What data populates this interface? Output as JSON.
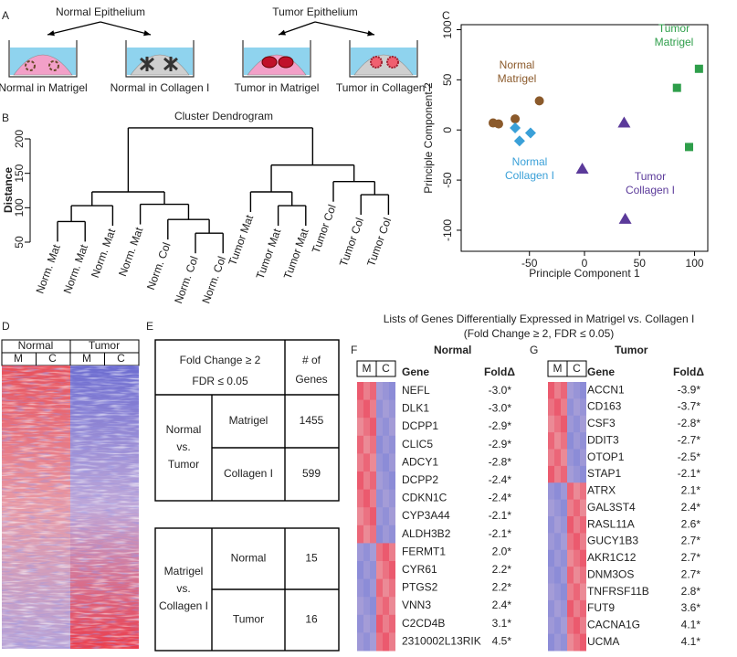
{
  "panel_labels": {
    "a": "A",
    "b": "B",
    "c": "C",
    "d": "D",
    "e": "E",
    "f": "F",
    "g": "G"
  },
  "panel_a": {
    "normal_title": "Normal Epithelium",
    "tumor_title": "Tumor Epithelium",
    "captions": [
      {
        "text": "Normal in Matrigel",
        "color": "#8b5a2b"
      },
      {
        "text": "Normal in Collagen I",
        "color": "#3aa0d8"
      },
      {
        "text": "Tumor in Matrigel",
        "color": "#2e9e4a"
      },
      {
        "text": "Tumor in Collagen I",
        "color": "#5b3a9a"
      }
    ]
  },
  "dendrogram": {
    "title": "Cluster Dendrogram",
    "y_label": "Distance",
    "ylim": [
      50,
      200
    ],
    "yticks": [
      50,
      100,
      150,
      200
    ],
    "leaves": [
      {
        "label": "Norm. Mat",
        "color": "#8b5a2b"
      },
      {
        "label": "Norm. Mat",
        "color": "#8b5a2b"
      },
      {
        "label": "Norm. Mat",
        "color": "#8b5a2b"
      },
      {
        "label": "Norm. Mat",
        "color": "#8b5a2b"
      },
      {
        "label": "Norm. Col",
        "color": "#3aa0d8"
      },
      {
        "label": "Norm. Col",
        "color": "#3aa0d8"
      },
      {
        "label": "Norm. Col",
        "color": "#3aa0d8"
      },
      {
        "label": "Tumor Mat",
        "color": "#2e9e4a"
      },
      {
        "label": "Tumor Mat",
        "color": "#2e9e4a"
      },
      {
        "label": "Tumor Mat",
        "color": "#2e9e4a"
      },
      {
        "label": "Tumor Col",
        "color": "#5b3a9a"
      },
      {
        "label": "Tumor Col",
        "color": "#5b3a9a"
      },
      {
        "label": "Tumor Col",
        "color": "#5b3a9a"
      }
    ],
    "merges": [
      {
        "nodes": [
          0,
          1
        ],
        "height": 80
      },
      {
        "nodes": [
          13,
          2
        ],
        "height": 103
      },
      {
        "nodes": [
          5,
          6
        ],
        "height": 63
      },
      {
        "nodes": [
          4,
          15
        ],
        "height": 83
      },
      {
        "nodes": [
          3,
          16
        ],
        "height": 105
      },
      {
        "nodes": [
          14,
          17
        ],
        "height": 123
      },
      {
        "nodes": [
          8,
          9
        ],
        "height": 103
      },
      {
        "nodes": [
          7,
          19
        ],
        "height": 123
      },
      {
        "nodes": [
          11,
          12
        ],
        "height": 119
      },
      {
        "nodes": [
          10,
          21
        ],
        "height": 138
      },
      {
        "nodes": [
          20,
          22
        ],
        "height": 162
      },
      {
        "nodes": [
          18,
          23
        ],
        "height": 216
      }
    ]
  },
  "chart_data": {
    "type": "scatter",
    "x_label": "Principle Component 1",
    "y_label": "Principle Component 2",
    "xlim": [
      -112,
      112
    ],
    "ylim": [
      -121,
      105
    ],
    "xticks": [
      -50,
      0,
      50,
      100
    ],
    "yticks": [
      -100,
      -50,
      0,
      50,
      100
    ],
    "series": [
      {
        "name": "Normal Matrigel",
        "color": "#8b5a2b",
        "marker": "circle",
        "x": [
          -83,
          -78,
          -63,
          -41
        ],
        "y": [
          7,
          6,
          11,
          29
        ]
      },
      {
        "name": "Normal Collagen I",
        "color": "#3aa0d8",
        "marker": "diamond",
        "x": [
          -63,
          -59,
          -49
        ],
        "y": [
          2,
          -11,
          -3
        ]
      },
      {
        "name": "Tumor Matrigel",
        "color": "#2e9e4a",
        "marker": "square",
        "x": [
          104,
          84,
          95
        ],
        "y": [
          61,
          42,
          -17
        ]
      },
      {
        "name": "Tumor Collagen I",
        "color": "#5b3a9a",
        "marker": "triangle",
        "x": [
          36,
          -2,
          37
        ],
        "y": [
          7,
          -39,
          -89
        ]
      }
    ]
  },
  "heatmap": {
    "groups": [
      "Normal",
      "Tumor"
    ],
    "columns": [
      "M",
      "C",
      "M",
      "C"
    ]
  },
  "table": {
    "criteria": [
      "Fold Change ≥ 2",
      "FDR ≤ 0.05"
    ],
    "count_header": [
      "# of",
      "Genes"
    ],
    "groups": [
      {
        "label": [
          "Normal",
          "vs.",
          "Tumor"
        ],
        "rows": [
          [
            "Matrigel",
            1455
          ],
          [
            "Collagen I",
            599
          ]
        ]
      },
      {
        "label": [
          "Matrigel",
          "vs.",
          "Collagen I"
        ],
        "rows": [
          [
            "Normal",
            15
          ],
          [
            "Tumor",
            16
          ]
        ]
      }
    ]
  },
  "gene_lists": {
    "title": "Lists of Genes Differentially Expressed in Matrigel vs. Collagen I",
    "subtitle": "(Fold Change ≥ 2, FDR ≤ 0.05)",
    "lists": [
      {
        "title": "Normal",
        "columns": [
          "M",
          "C"
        ],
        "gene_header": "Gene",
        "fold_header": "FoldΔ",
        "rows": [
          [
            "NEFL",
            "-3.0*"
          ],
          [
            "DLK1",
            "-3.0*"
          ],
          [
            "DCPP1",
            "-2.9*"
          ],
          [
            "CLIC5",
            "-2.9*"
          ],
          [
            "ADCY1",
            "-2.8*"
          ],
          [
            "DCPP2",
            "-2.4*"
          ],
          [
            "CDKN1C",
            "-2.4*"
          ],
          [
            "CYP3A44",
            "-2.1*"
          ],
          [
            "ALDH3B2",
            "-2.1*"
          ],
          [
            "FERMT1",
            "2.0*"
          ],
          [
            "CYR61",
            "2.2*"
          ],
          [
            "PTGS2",
            "2.2*"
          ],
          [
            "VNN3",
            "2.4*"
          ],
          [
            "C2CD4B",
            "3.1*"
          ],
          [
            "2310002L13RIK",
            "4.5*"
          ]
        ]
      },
      {
        "title": "Tumor",
        "columns": [
          "M",
          "C"
        ],
        "gene_header": "Gene",
        "fold_header": "FoldΔ",
        "rows": [
          [
            "ACCN1",
            "-3.9*"
          ],
          [
            "CD163",
            "-3.7*"
          ],
          [
            "CSF3",
            "-2.8*"
          ],
          [
            "DDIT3",
            "-2.7*"
          ],
          [
            "OTOP1",
            "-2.5*"
          ],
          [
            "STAP1",
            "-2.1*"
          ],
          [
            "ATRX",
            "2.1*"
          ],
          [
            "GAL3ST4",
            "2.4*"
          ],
          [
            "RASL11A",
            "2.6*"
          ],
          [
            "GUCY1B3",
            "2.7*"
          ],
          [
            "AKR1C12",
            "2.7*"
          ],
          [
            "DNM3OS",
            "2.7*"
          ],
          [
            "TNFRSF11B",
            "2.8*"
          ],
          [
            "FUT9",
            "3.6*"
          ],
          [
            "CACNA1G",
            "4.1*"
          ],
          [
            "UCMA",
            "4.1*"
          ]
        ]
      }
    ]
  }
}
